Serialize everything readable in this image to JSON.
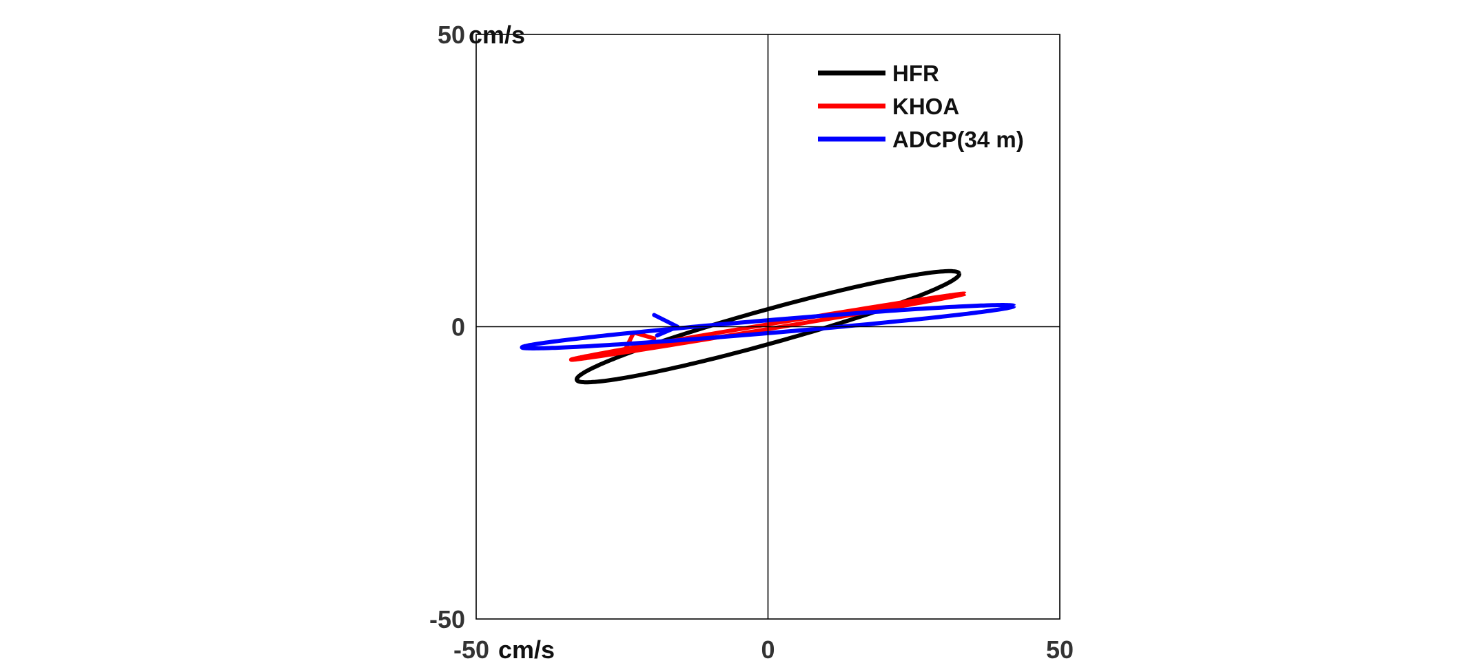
{
  "chart_data": {
    "type": "line",
    "title": "",
    "xlabel": "",
    "ylabel": "",
    "xlim": [
      -50,
      50
    ],
    "ylim": [
      -50,
      50
    ],
    "x_ticks": [
      -50,
      0,
      50
    ],
    "y_ticks": [
      -50,
      0,
      50
    ],
    "x_tick_labels": [
      "-50",
      "0",
      "50"
    ],
    "y_tick_labels": [
      "-50",
      "0",
      "50"
    ],
    "x_unit_label": "cm/s",
    "y_unit_label": "cm/s",
    "zero_axes": true,
    "grid": false,
    "legend_position": "top-right",
    "series": [
      {
        "name": "HFR",
        "color": "#000000",
        "ellipse": {
          "center": [
            0,
            0
          ],
          "semi_major": 34.0,
          "semi_minor": 2.9,
          "angle_deg": 15.5
        },
        "tick_mark": null
      },
      {
        "name": "KHOA",
        "color": "#ff0000",
        "ellipse": {
          "center": [
            0,
            0
          ],
          "semi_major": 34.2,
          "semi_minor": 0.4,
          "angle_deg": 9.5
        },
        "tick_mark": [
          [
            -24.5,
            -4.0
          ],
          [
            -23.0,
            -1.0
          ],
          [
            -19.5,
            -2.0
          ]
        ]
      },
      {
        "name": "ADCP(34 m)",
        "color": "#0000ff",
        "ellipse": {
          "center": [
            0,
            0
          ],
          "semi_major": 42.3,
          "semi_minor": 1.1,
          "angle_deg": 4.8
        },
        "tick_mark": [
          [
            -19.5,
            2.0
          ],
          [
            -15.5,
            0.0
          ],
          [
            -19.0,
            -1.5
          ]
        ]
      }
    ]
  }
}
